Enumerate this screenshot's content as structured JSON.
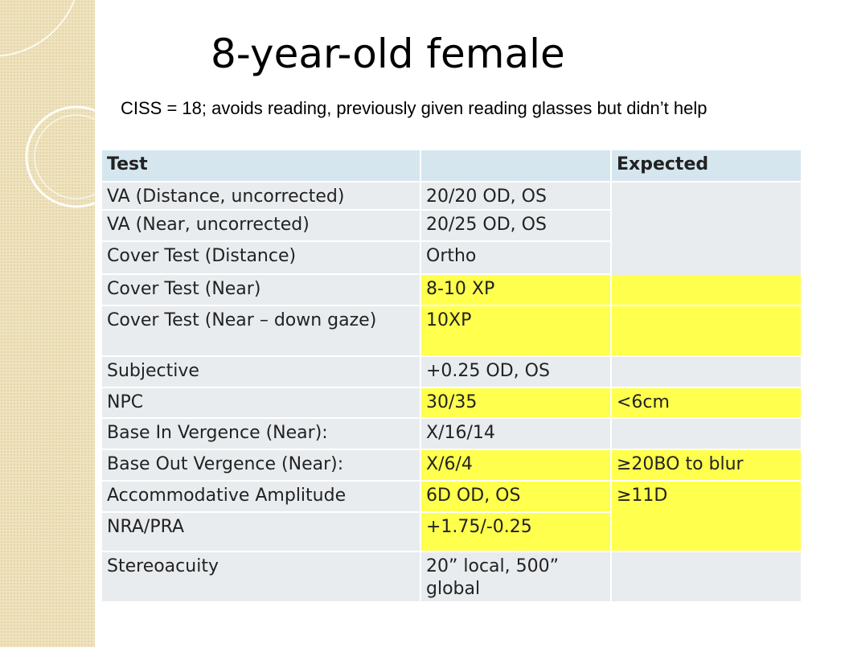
{
  "title": "8-year-old female",
  "subtitle": "CISS = 18; avoids reading, previously given reading glasses but didn’t help",
  "table": {
    "highlight_color": "#ffff4d",
    "header": {
      "test": "Test",
      "expected": "Expected"
    },
    "rows": [
      {
        "test": "VA (Distance, uncorrected)",
        "result": "20/20 OD, OS"
      },
      {
        "test": "VA (Near, uncorrected)",
        "result": "20/25 OD, OS"
      },
      {
        "test": "Cover Test (Distance)",
        "result": "Ortho"
      },
      {
        "test": "Cover Test (Near)",
        "result": "8-10 XP",
        "highlighted": true
      },
      {
        "test": "Cover Test (Near – down gaze)",
        "result": "10XP",
        "highlighted": true
      },
      {
        "test": "Subjective",
        "result": "+0.25 OD, OS"
      },
      {
        "test": "NPC",
        "result": "30/35",
        "expected": "<6cm",
        "highlighted": true
      },
      {
        "test": "Base In Vergence (Near):",
        "result": "X/16/14"
      },
      {
        "test": "Base Out Vergence (Near):",
        "result": "X/6/4",
        "expected": "≥20BO to blur",
        "highlighted": true
      },
      {
        "test": "Accommodative Amplitude",
        "result": "6D OD, OS",
        "expected": "≥11D",
        "highlighted": true
      },
      {
        "test": "NRA/PRA",
        "result": "+1.75/-0.25",
        "highlighted": true
      },
      {
        "test": "Stereoacuity",
        "result": "20” local, 500” global"
      }
    ]
  }
}
